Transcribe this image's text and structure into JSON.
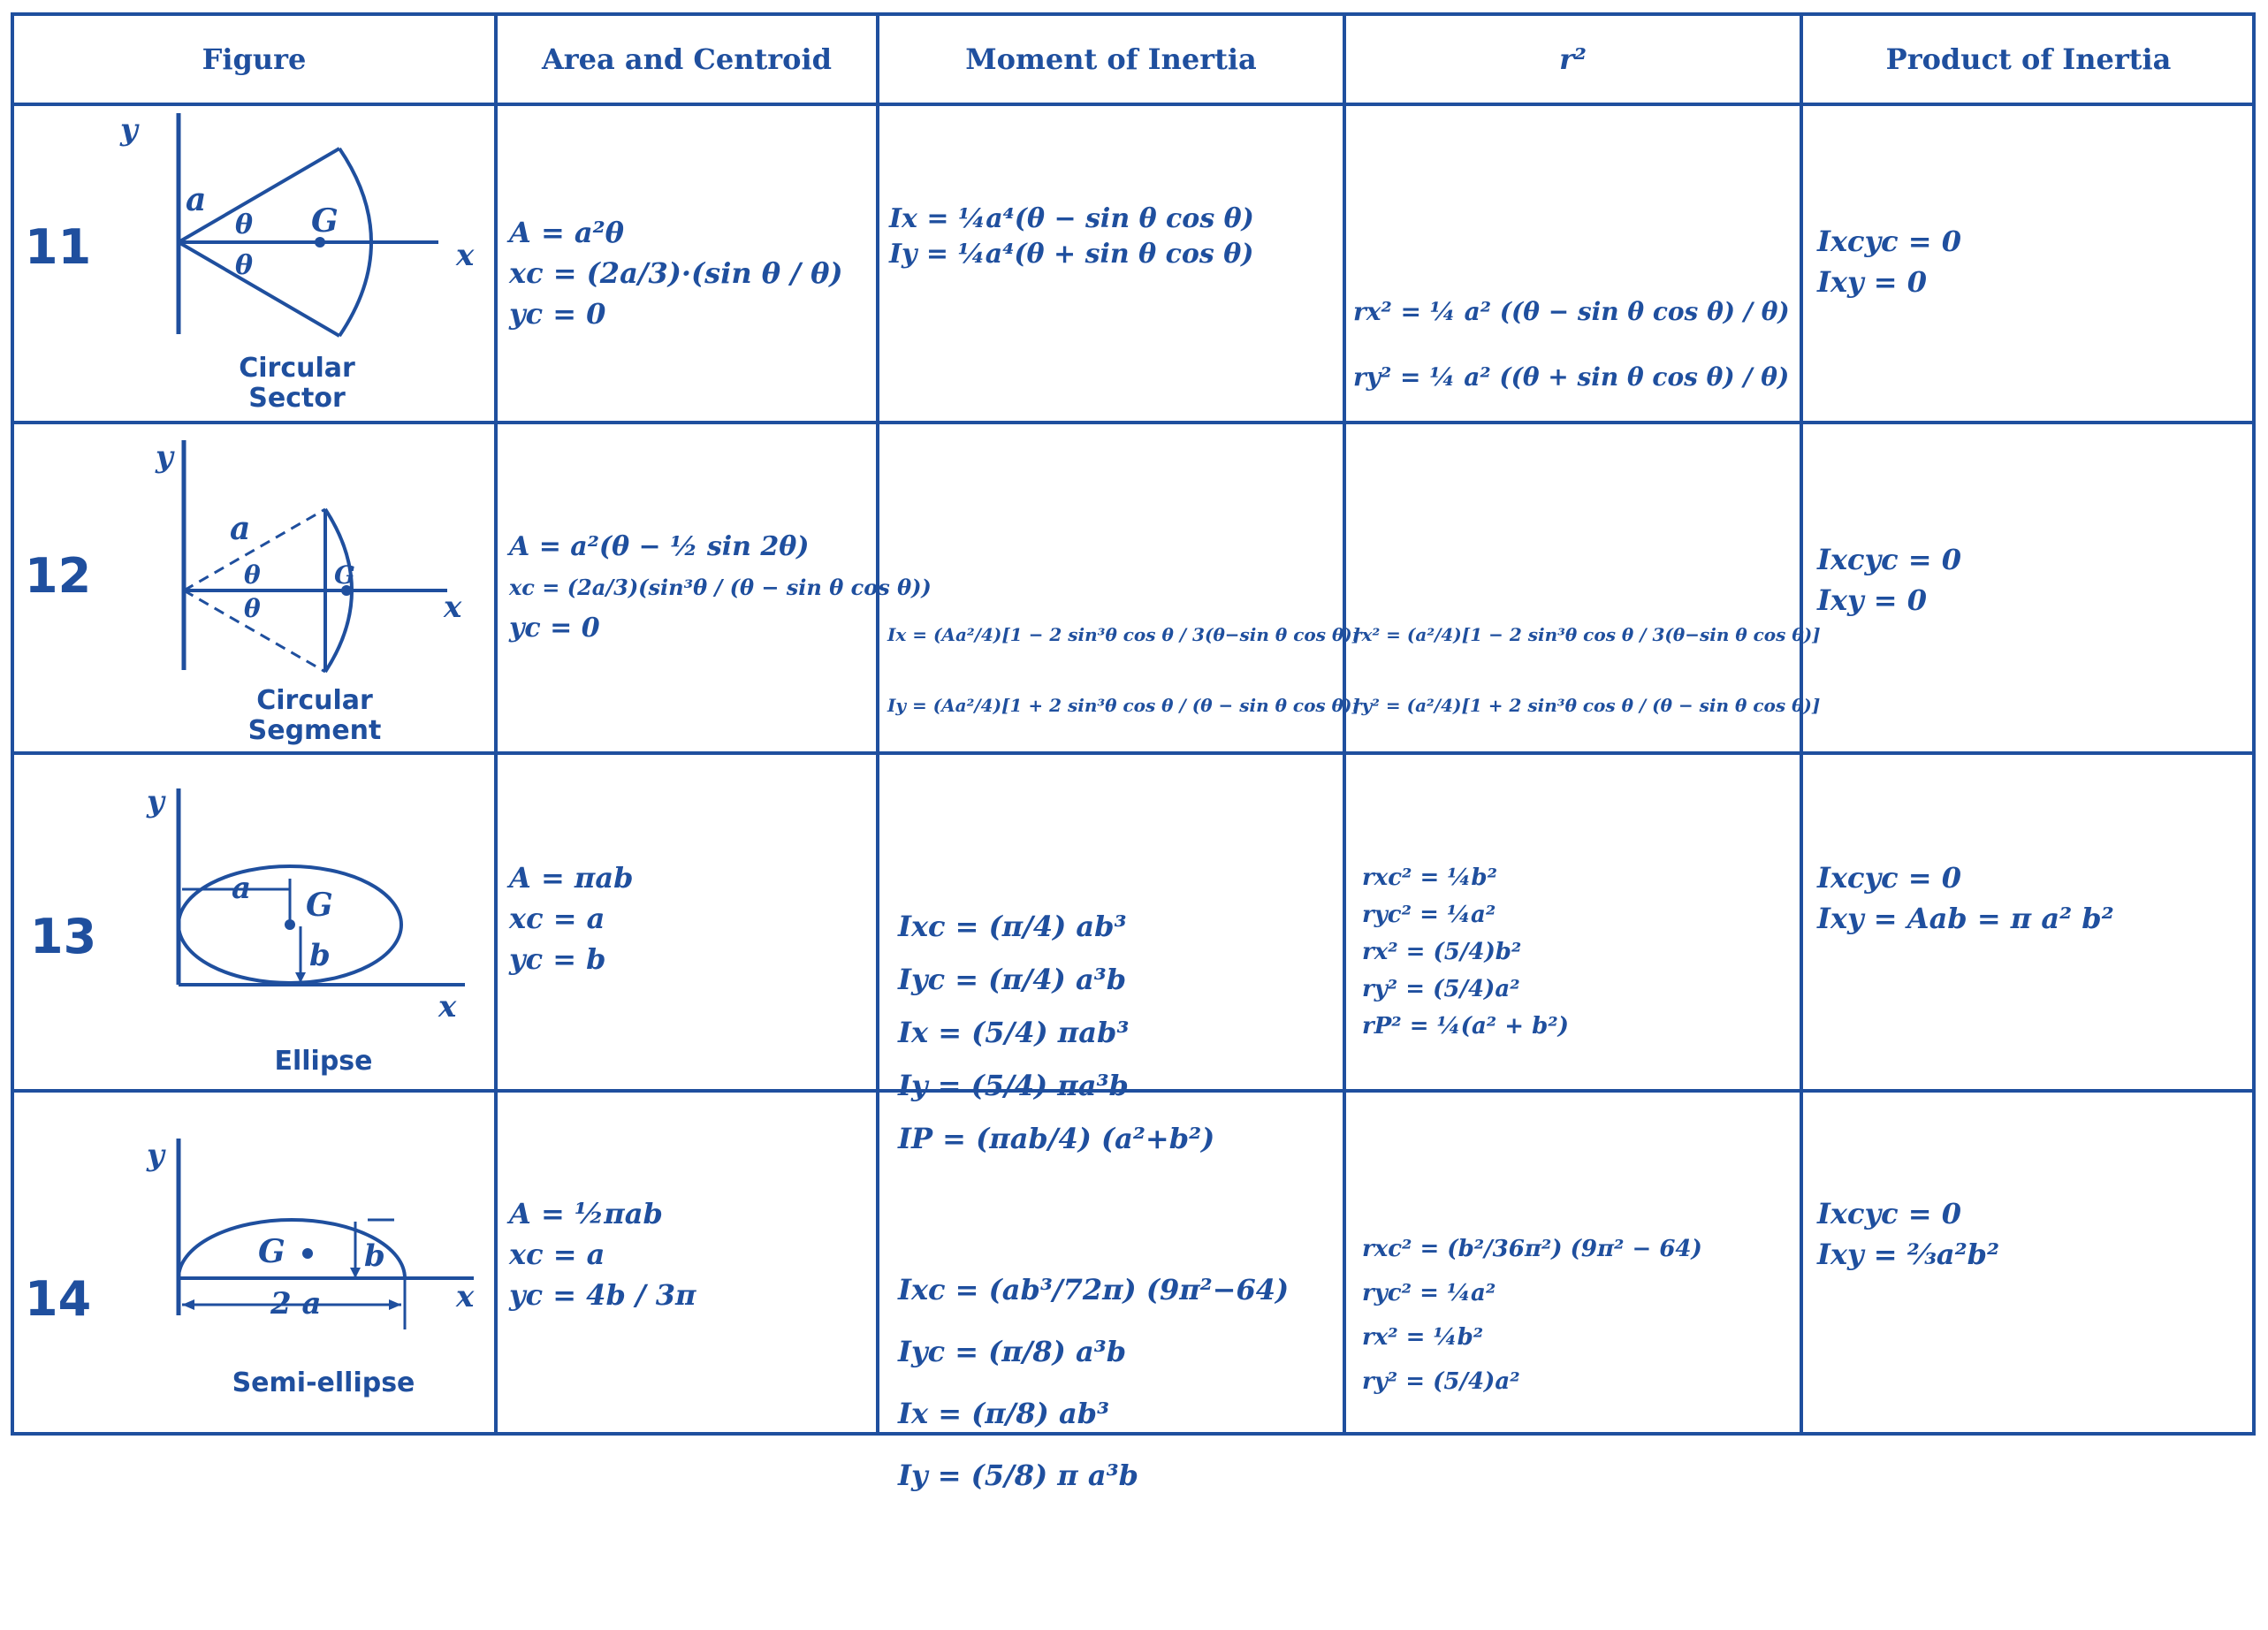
{
  "colors": {
    "ink": "#1f4f9e",
    "paper": "#ffffff"
  },
  "headers": {
    "figure": "Figure",
    "area": "Area and Centroid",
    "moment": "Moment of Inertia",
    "r2": "r²",
    "product": "Product of Inertia"
  },
  "axis_labels": {
    "x": "x",
    "y": "y",
    "a": "a",
    "b": "b",
    "G": "G",
    "theta": "θ",
    "two_a": "2 a"
  },
  "rows": [
    {
      "number": "11",
      "figure_name": [
        "Circular",
        "Sector"
      ],
      "area": [
        "A = a²θ",
        "xc = (2a/3)·(sin θ / θ)",
        "yc = 0"
      ],
      "moment": [
        "Ix = ¼a⁴(θ − sin θ cos θ)",
        "Iy = ¼a⁴(θ + sin θ cos θ)"
      ],
      "r2": [
        "rx² = ¼ a² ((θ − sin θ cos θ) / θ)",
        "ry² = ¼ a² ((θ + sin θ cos θ) / θ)"
      ],
      "product": [
        "Ixcyc = 0",
        "Ixy = 0"
      ]
    },
    {
      "number": "12",
      "figure_name": [
        "Circular",
        "Segment"
      ],
      "area": [
        "A = a²(θ − ½ sin 2θ)",
        "xc = (2a/3)(sin³θ / (θ − sin θ cos θ))",
        "yc = 0"
      ],
      "moment": [
        "Ix = (Aa²/4)[1 − 2 sin³θ cos θ / 3(θ−sin θ cos θ)]",
        "Iy = (Aa²/4)[1 + 2 sin³θ cos θ / (θ − sin θ cos θ)]"
      ],
      "r2": [
        "rx² = (a²/4)[1 − 2 sin³θ cos θ / 3(θ−sin θ cos θ)]",
        "ry² = (a²/4)[1 + 2 sin³θ cos θ / (θ − sin θ cos θ)]"
      ],
      "product": [
        "Ixcyc = 0",
        "Ixy = 0"
      ]
    },
    {
      "number": "13",
      "figure_name": [
        "Ellipse"
      ],
      "area": [
        "A = πab",
        "xc = a",
        "yc = b"
      ],
      "moment": [
        "Ixc = (π/4) ab³",
        "Iyc = (π/4) a³b",
        "Ix = (5/4) πab³",
        "Iy = (5/4) πa³b",
        "IP = (πab/4) (a²+b²)"
      ],
      "r2": [
        "rxc² = ¼b²",
        "ryc² = ¼a²",
        "rx² = (5/4)b²",
        "ry² = (5/4)a²",
        "rP² = ¼(a² + b²)"
      ],
      "product": [
        "Ixcyc = 0",
        "Ixy = Aab = π a² b²"
      ]
    },
    {
      "number": "14",
      "figure_name": [
        "Semi-ellipse"
      ],
      "area": [
        "A = ½πab",
        "xc = a",
        "yc = 4b / 3π"
      ],
      "moment": [
        "Ixc = (ab³/72π) (9π²−64)",
        "Iyc = (π/8) a³b",
        "Ix = (π/8) ab³",
        "Iy = (5/8) π a³b"
      ],
      "r2": [
        "rxc² = (b²/36π²) (9π² − 64)",
        "ryc² = ¼a²",
        "rx² = ¼b²",
        "ry² = (5/4)a²"
      ],
      "product": [
        "Ixcyc = 0",
        "Ixy = ⅔a²b²"
      ]
    }
  ]
}
